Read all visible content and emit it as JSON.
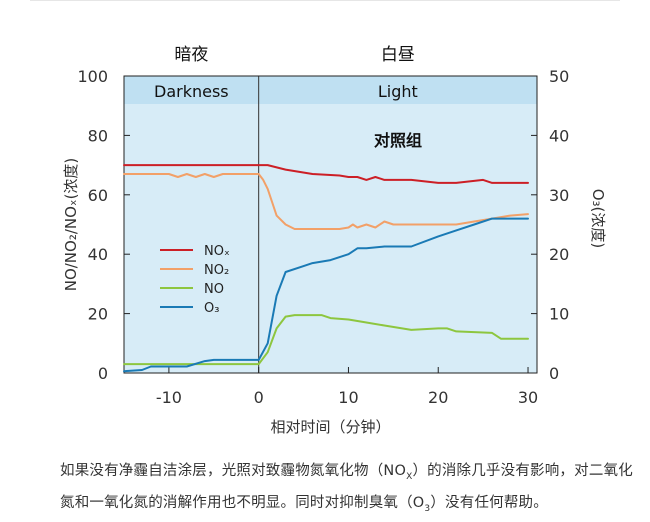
{
  "chart_data": {
    "type": "line",
    "phase_labels": {
      "left": "暗夜",
      "right": "白昼"
    },
    "panel_labels": {
      "dark": "Darkness",
      "light": "Light"
    },
    "annotation": "对照组",
    "xlabel": "相对时间（分钟）",
    "ylabel_left": "NO/NO₂/NOₓ(浓度)",
    "ylabel_right": "O₃(浓度)",
    "xlim": [
      -15,
      31
    ],
    "ylim_left": [
      0,
      100
    ],
    "ylim_right": [
      0,
      50
    ],
    "xticks": [
      -10,
      0,
      10,
      20,
      30
    ],
    "yticks_left": [
      0,
      20,
      40,
      60,
      80,
      100
    ],
    "yticks_right": [
      0,
      10,
      20,
      30,
      40,
      50
    ],
    "grid": false,
    "legend_position": "left-middle",
    "series": [
      {
        "name": "NOₓ",
        "color": "#cc1f26",
        "axis": "left",
        "points": [
          [
            -15,
            70
          ],
          [
            0,
            70
          ],
          [
            1,
            70
          ],
          [
            3,
            68.5
          ],
          [
            6,
            67
          ],
          [
            9,
            66.5
          ],
          [
            10,
            66
          ],
          [
            11,
            66
          ],
          [
            12,
            65
          ],
          [
            13,
            66
          ],
          [
            14,
            65
          ],
          [
            17,
            65
          ],
          [
            20,
            64
          ],
          [
            22,
            64
          ],
          [
            25,
            65
          ],
          [
            26,
            64
          ],
          [
            30,
            64
          ]
        ]
      },
      {
        "name": "NO₂",
        "color": "#f2a068",
        "axis": "left",
        "points": [
          [
            -15,
            67
          ],
          [
            -10,
            67
          ],
          [
            -9,
            66
          ],
          [
            -8,
            67
          ],
          [
            -7,
            66
          ],
          [
            -6,
            67
          ],
          [
            -5,
            66
          ],
          [
            -4,
            67
          ],
          [
            -2,
            67
          ],
          [
            0,
            67
          ],
          [
            0.5,
            65
          ],
          [
            1,
            62
          ],
          [
            2,
            53
          ],
          [
            3,
            50
          ],
          [
            4,
            48.5
          ],
          [
            6,
            48.5
          ],
          [
            9,
            48.5
          ],
          [
            10,
            49
          ],
          [
            10.5,
            50
          ],
          [
            11,
            49
          ],
          [
            12,
            50
          ],
          [
            13,
            49
          ],
          [
            14,
            51
          ],
          [
            15,
            50
          ],
          [
            20,
            50
          ],
          [
            22,
            50
          ],
          [
            24,
            51
          ],
          [
            26,
            52
          ],
          [
            28,
            53
          ],
          [
            30,
            53.5
          ]
        ]
      },
      {
        "name": "NO",
        "color": "#8dc63f",
        "axis": "left",
        "points": [
          [
            -15,
            3
          ],
          [
            -10,
            3
          ],
          [
            -5,
            3
          ],
          [
            0,
            3
          ],
          [
            1,
            7
          ],
          [
            2,
            15
          ],
          [
            3,
            19
          ],
          [
            4,
            19.5
          ],
          [
            7,
            19.5
          ],
          [
            8,
            18.5
          ],
          [
            10,
            18
          ],
          [
            12,
            17
          ],
          [
            14,
            16
          ],
          [
            17,
            14.5
          ],
          [
            20,
            15
          ],
          [
            21,
            15
          ],
          [
            22,
            14
          ],
          [
            26,
            13.5
          ],
          [
            27,
            11.5
          ],
          [
            30,
            11.5
          ]
        ]
      },
      {
        "name": "O₃",
        "color": "#1a7ab5",
        "axis": "right",
        "points": [
          [
            -15,
            0.3
          ],
          [
            -13,
            0.5
          ],
          [
            -12,
            1.1
          ],
          [
            -10,
            1.1
          ],
          [
            -8,
            1.1
          ],
          [
            -6,
            2
          ],
          [
            -5,
            2.2
          ],
          [
            0,
            2.2
          ],
          [
            1,
            5
          ],
          [
            2,
            13
          ],
          [
            3,
            17
          ],
          [
            5,
            18
          ],
          [
            6,
            18.5
          ],
          [
            8,
            19
          ],
          [
            10,
            20
          ],
          [
            11,
            21
          ],
          [
            12,
            21
          ],
          [
            14,
            21.3
          ],
          [
            17,
            21.3
          ],
          [
            20,
            23
          ],
          [
            22,
            24
          ],
          [
            24,
            25
          ],
          [
            26,
            26
          ],
          [
            30,
            26
          ]
        ]
      }
    ]
  },
  "caption": {
    "text_1": "如果没有净霾自洁涂层，光照对致霾物氮氧化物（NO",
    "sub_1": "X",
    "text_2": "）的消除几乎没有影响，对二氧化氮和一氧化氮的消解作用也不明显。同时对抑制臭氧（O",
    "sub_2": "3",
    "text_3": "）没有任何帮助。"
  }
}
